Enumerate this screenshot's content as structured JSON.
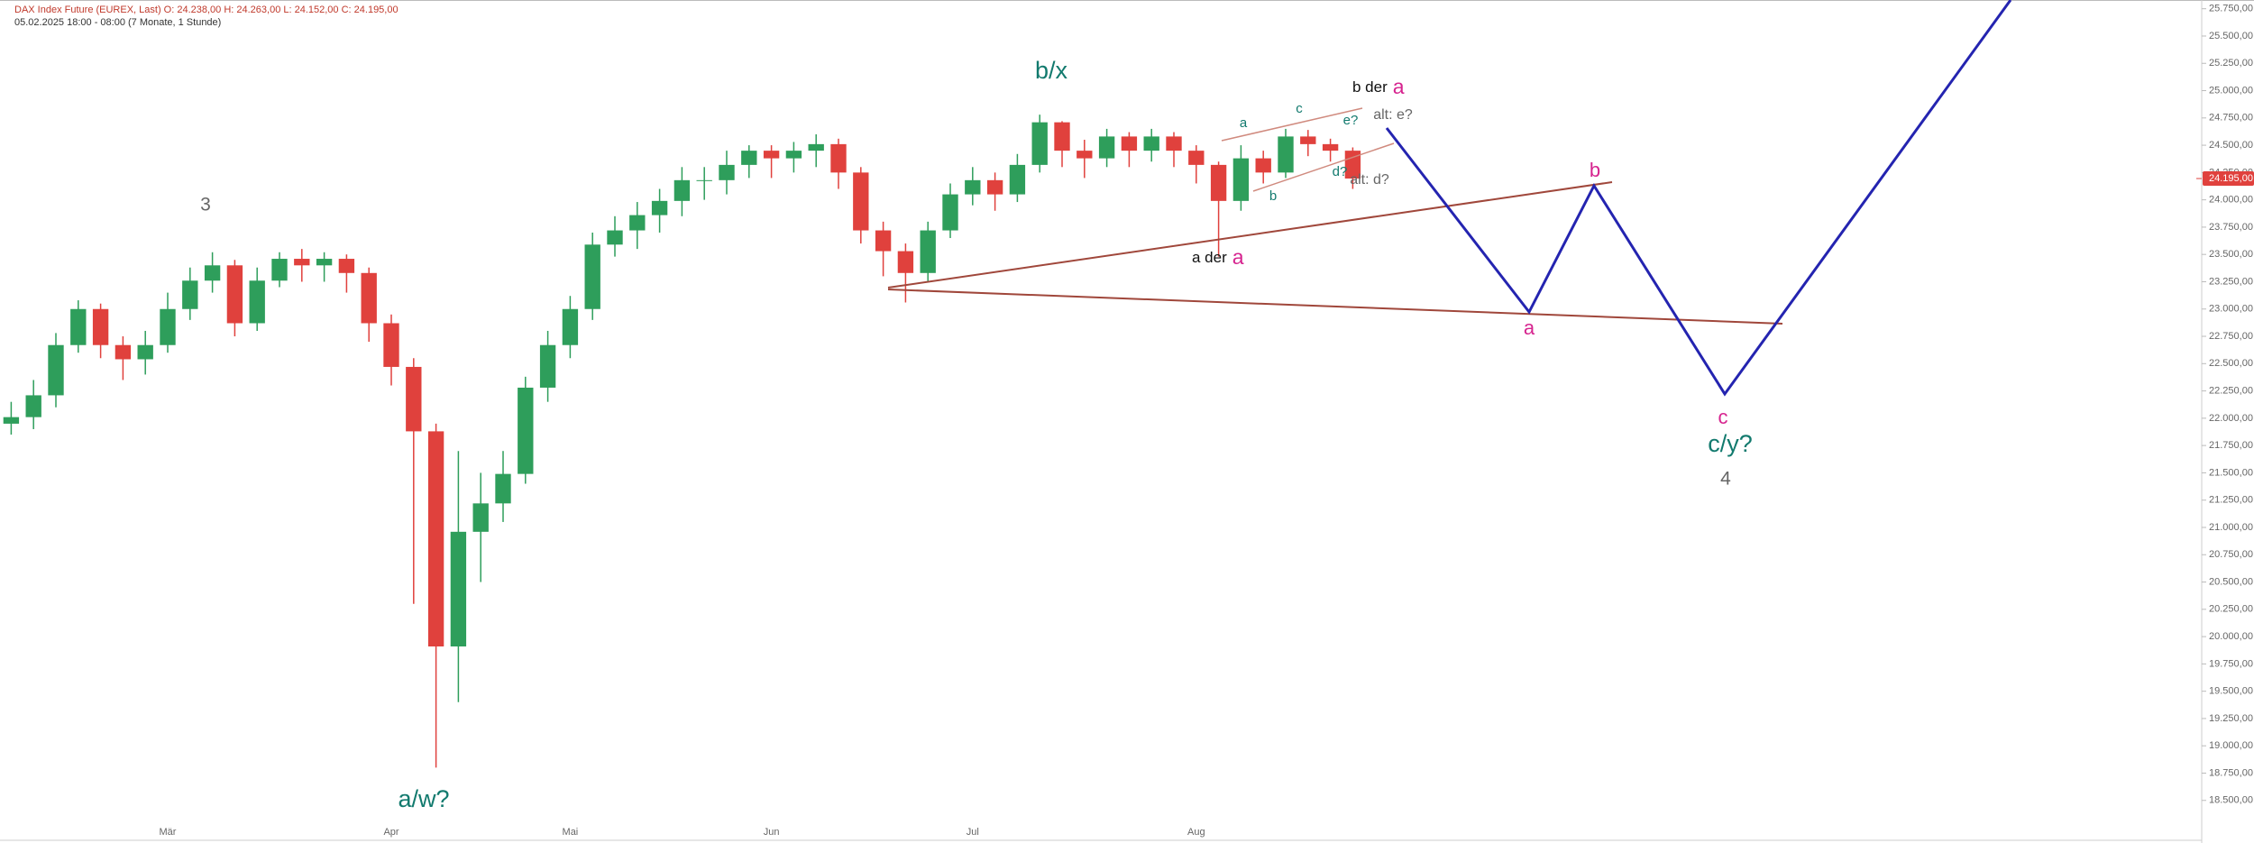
{
  "chart_data": {
    "type": "candlestick",
    "header_line1": "DAX Index Future (EUREX, Last)   O: 24.238,00   H: 24.263,00   L: 24.152,00   C: 24.195,00",
    "header_line2": "05.02.2025 18:00 - 08:00   (7 Monate, 1 Stunde)",
    "categories": [
      null,
      null,
      null,
      null,
      null,
      null,
      null,
      "Mär",
      null,
      null,
      null,
      null,
      null,
      null,
      null,
      null,
      null,
      "Apr",
      null,
      null,
      null,
      null,
      null,
      null,
      null,
      "Mai",
      null,
      null,
      null,
      null,
      null,
      null,
      null,
      null,
      "Jun",
      null,
      null,
      null,
      null,
      null,
      null,
      null,
      null,
      "Jul",
      null,
      null,
      null,
      null,
      null,
      null,
      null,
      null,
      null,
      "Aug",
      null,
      null,
      null,
      null,
      null,
      null,
      null
    ],
    "open": [
      21950,
      22010,
      22210,
      22670,
      23000,
      22670,
      22540,
      22670,
      23000,
      23260,
      23400,
      22870,
      23260,
      23460,
      23400,
      23460,
      23330,
      22870,
      22470,
      21880,
      19910,
      20960,
      21220,
      21490,
      22280,
      22670,
      23000,
      23590,
      23720,
      23860,
      23990,
      24180,
      24180,
      24320,
      24450,
      24380,
      24450,
      24510,
      24250,
      23720,
      23530,
      23330,
      23720,
      24050,
      24180,
      24050,
      24320,
      24710,
      24450,
      24380,
      24580,
      24450,
      24580,
      24450,
      24320,
      23990,
      24380,
      24250,
      24580,
      24510,
      24450
    ],
    "high": [
      22150,
      22350,
      22780,
      23080,
      23050,
      22750,
      22800,
      23150,
      23380,
      23520,
      23450,
      23380,
      23520,
      23550,
      23520,
      23500,
      23380,
      22950,
      22550,
      21950,
      21700,
      21500,
      21700,
      22380,
      22800,
      23120,
      23700,
      23850,
      23980,
      24100,
      24300,
      24300,
      24450,
      24500,
      24500,
      24530,
      24600,
      24560,
      24300,
      23800,
      23600,
      23800,
      24150,
      24300,
      24250,
      24420,
      24780,
      24720,
      24550,
      24650,
      24620,
      24650,
      24620,
      24500,
      24350,
      24500,
      24450,
      24650,
      24640,
      24560,
      24480
    ],
    "low": [
      21850,
      21900,
      22100,
      22600,
      22550,
      22350,
      22400,
      22600,
      22900,
      23150,
      22750,
      22800,
      23200,
      23250,
      23250,
      23150,
      22700,
      22300,
      20300,
      18800,
      19400,
      20500,
      21050,
      21400,
      22150,
      22550,
      22900,
      23480,
      23550,
      23700,
      23850,
      24000,
      24050,
      24200,
      24200,
      24250,
      24300,
      24100,
      23600,
      23300,
      23060,
      23250,
      23650,
      23950,
      23900,
      23980,
      24250,
      24300,
      24200,
      24300,
      24300,
      24350,
      24300,
      24150,
      23480,
      23900,
      24150,
      24200,
      24400,
      24350,
      24100
    ],
    "close": [
      22010,
      22210,
      22670,
      23000,
      22670,
      22540,
      22670,
      23000,
      23260,
      23400,
      22870,
      23260,
      23460,
      23400,
      23460,
      23330,
      22870,
      22470,
      21880,
      19910,
      20960,
      21220,
      21490,
      22280,
      22670,
      23000,
      23590,
      23720,
      23860,
      23990,
      24180,
      24180,
      24320,
      24450,
      24380,
      24450,
      24510,
      24250,
      23720,
      23530,
      23330,
      23720,
      24050,
      24180,
      24050,
      24320,
      24710,
      24450,
      24380,
      24580,
      24450,
      24580,
      24450,
      24320,
      23990,
      24380,
      24250,
      24580,
      24510,
      24450,
      24195
    ],
    "up_color": "#2e9e5b",
    "down_color": "#e0413d",
    "ylim": [
      18110,
      25830
    ],
    "yticks": [
      {
        "value": 18500,
        "label": "18.500,00"
      },
      {
        "value": 18750,
        "label": "18.750,00"
      },
      {
        "value": 19000,
        "label": "19.000,00"
      },
      {
        "value": 19250,
        "label": "19.250,00"
      },
      {
        "value": 19500,
        "label": "19.500,00"
      },
      {
        "value": 19750,
        "label": "19.750,00"
      },
      {
        "value": 20000,
        "label": "20.000,00"
      },
      {
        "value": 20250,
        "label": "20.250,00"
      },
      {
        "value": 20500,
        "label": "20.500,00"
      },
      {
        "value": 20750,
        "label": "20.750,00"
      },
      {
        "value": 21000,
        "label": "21.000,00"
      },
      {
        "value": 21250,
        "label": "21.250,00"
      },
      {
        "value": 21500,
        "label": "21.500,00"
      },
      {
        "value": 21750,
        "label": "21.750,00"
      },
      {
        "value": 22000,
        "label": "22.000,00"
      },
      {
        "value": 22250,
        "label": "22.250,00"
      },
      {
        "value": 22500,
        "label": "22.500,00"
      },
      {
        "value": 22750,
        "label": "22.750,00"
      },
      {
        "value": 23000,
        "label": "23.000,00"
      },
      {
        "value": 23250,
        "label": "23.250,00"
      },
      {
        "value": 23500,
        "label": "23.500,00"
      },
      {
        "value": 23750,
        "label": "23.750,00"
      },
      {
        "value": 24000,
        "label": "24.000,00"
      },
      {
        "value": 24250,
        "label": "24.250,00"
      },
      {
        "value": 24500,
        "label": "24.500,00"
      },
      {
        "value": 24750,
        "label": "24.750,00"
      },
      {
        "value": 25000,
        "label": "25.000,00"
      },
      {
        "value": 25250,
        "label": "25.250,00"
      },
      {
        "value": 25500,
        "label": "25.500,00"
      },
      {
        "value": 25750,
        "label": "25.750,00"
      }
    ],
    "last_price": {
      "value": 24195,
      "label": "24.195,00"
    },
    "annotations": [
      "3",
      "a/w?",
      "b/x",
      "b der",
      "a",
      "alt: e?",
      "a",
      "c",
      "e?",
      "b",
      "d?",
      "alt: d?",
      "a der",
      "a",
      "b",
      "a",
      "c",
      "c/y?",
      "4"
    ]
  }
}
